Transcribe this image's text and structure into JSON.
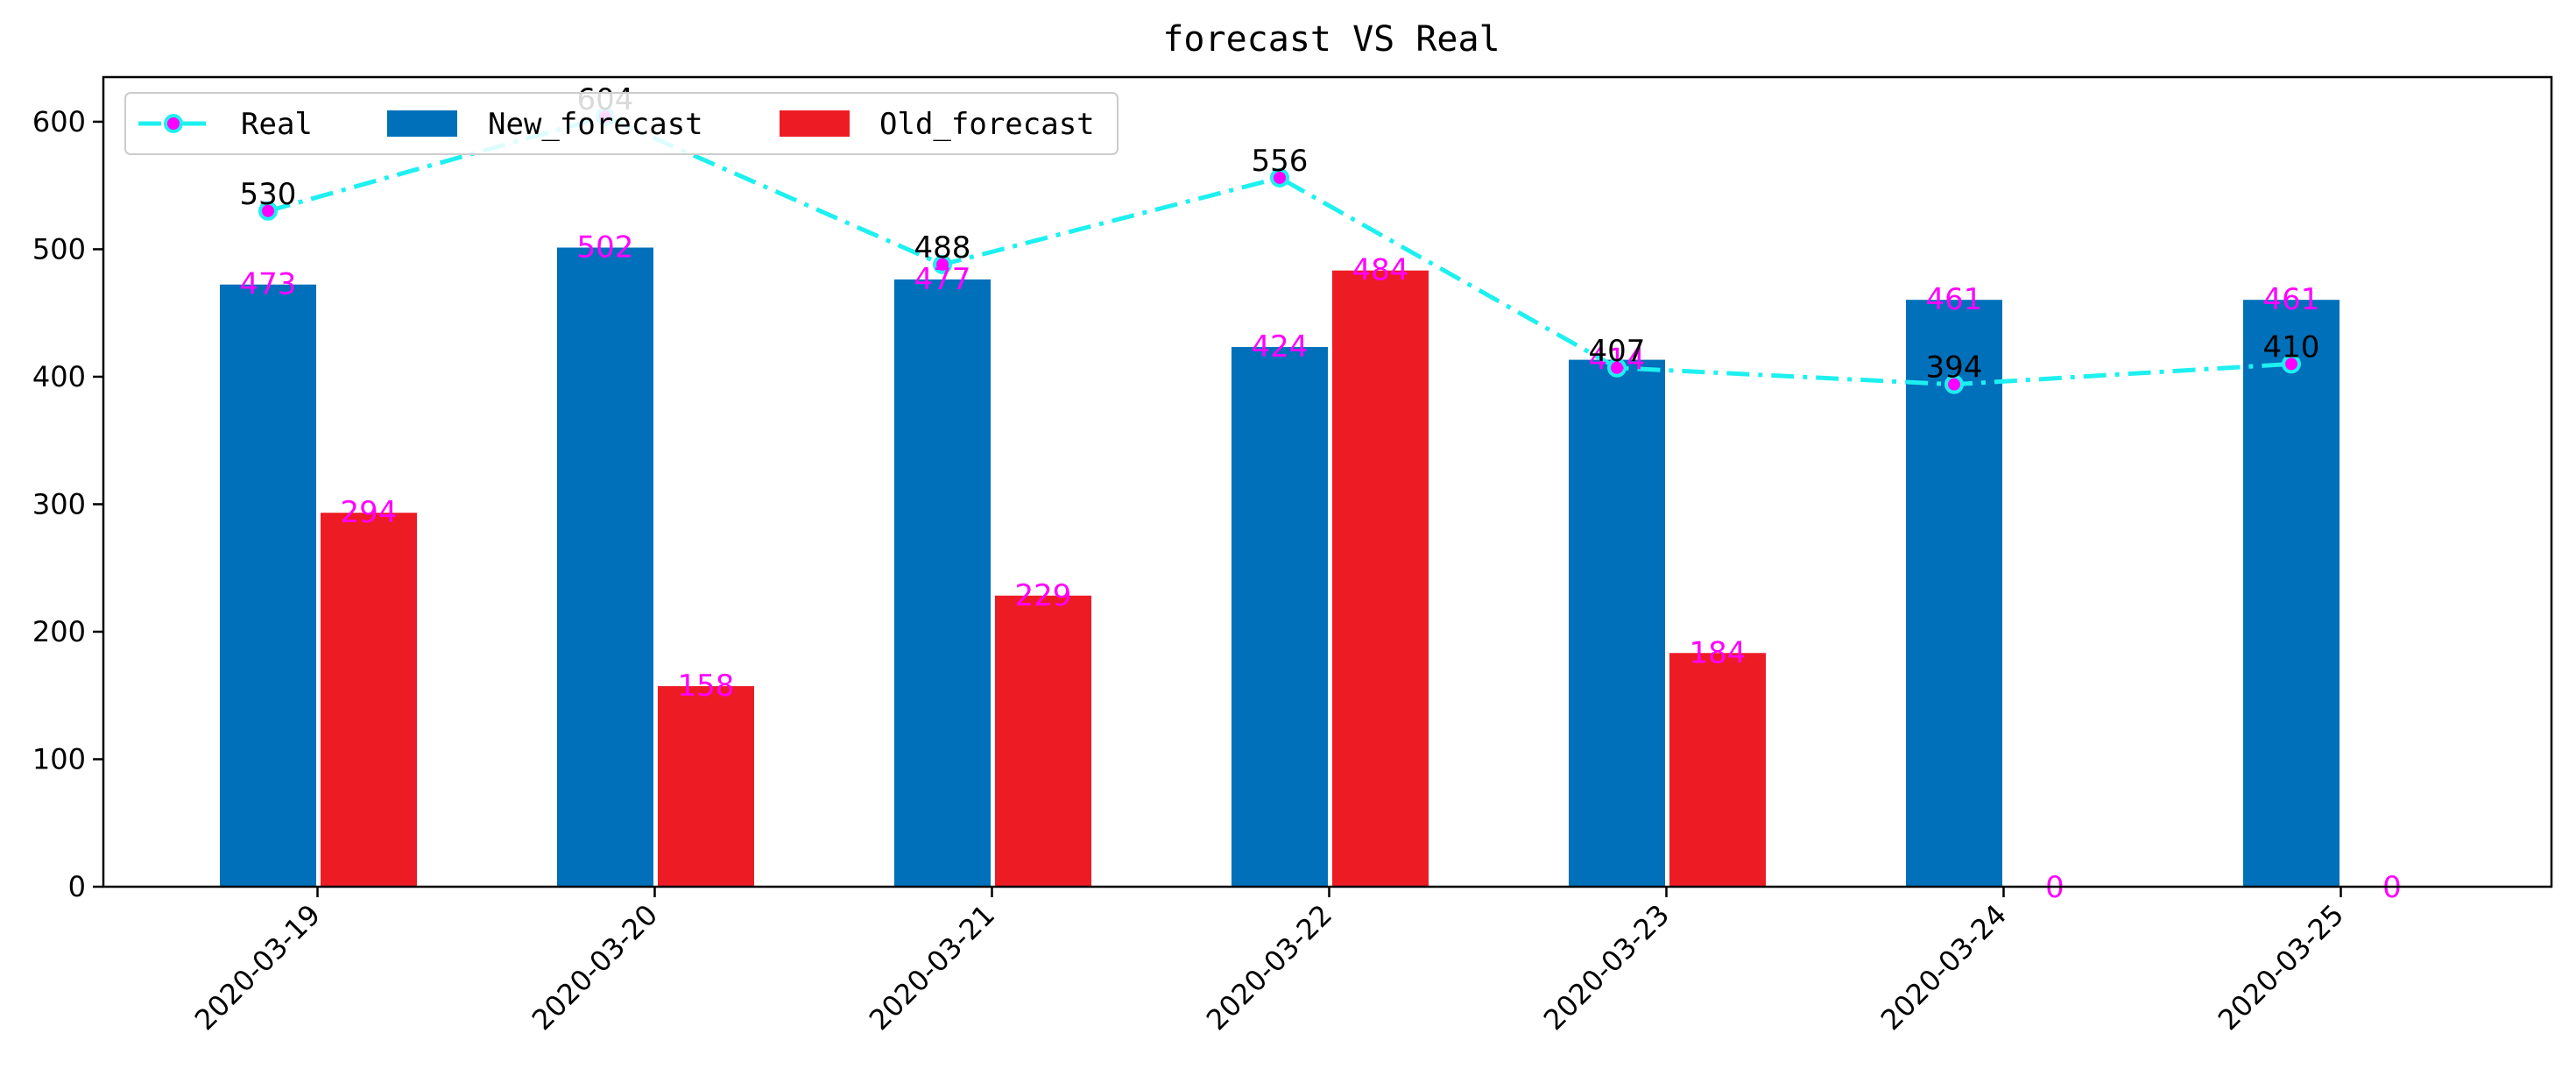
{
  "chart_data": {
    "type": "bar",
    "title": "forecast VS Real",
    "xlabel": "",
    "ylabel": "",
    "categories": [
      "2020-03-19",
      "2020-03-20",
      "2020-03-21",
      "2020-03-22",
      "2020-03-23",
      "2020-03-24",
      "2020-03-25"
    ],
    "ylim": [
      0,
      635
    ],
    "yticks": [
      0,
      100,
      200,
      300,
      400,
      500,
      600
    ],
    "grid": false,
    "legend": "upper-left",
    "series": [
      {
        "name": "Real",
        "kind": "line",
        "style": "dash-dot",
        "color": "#1ef0f0",
        "marker_color": "#ff00ff",
        "x_offset": "new_forecast",
        "values": [
          530,
          604,
          488,
          556,
          407,
          394,
          410
        ]
      },
      {
        "name": "New_forecast",
        "kind": "bar",
        "color": "#0070ba",
        "values": [
          473,
          502,
          477,
          424,
          414,
          461,
          461
        ]
      },
      {
        "name": "Old_forecast",
        "kind": "bar",
        "color": "#ed1c24",
        "values": [
          294,
          158,
          229,
          484,
          184,
          0,
          0
        ]
      }
    ]
  }
}
